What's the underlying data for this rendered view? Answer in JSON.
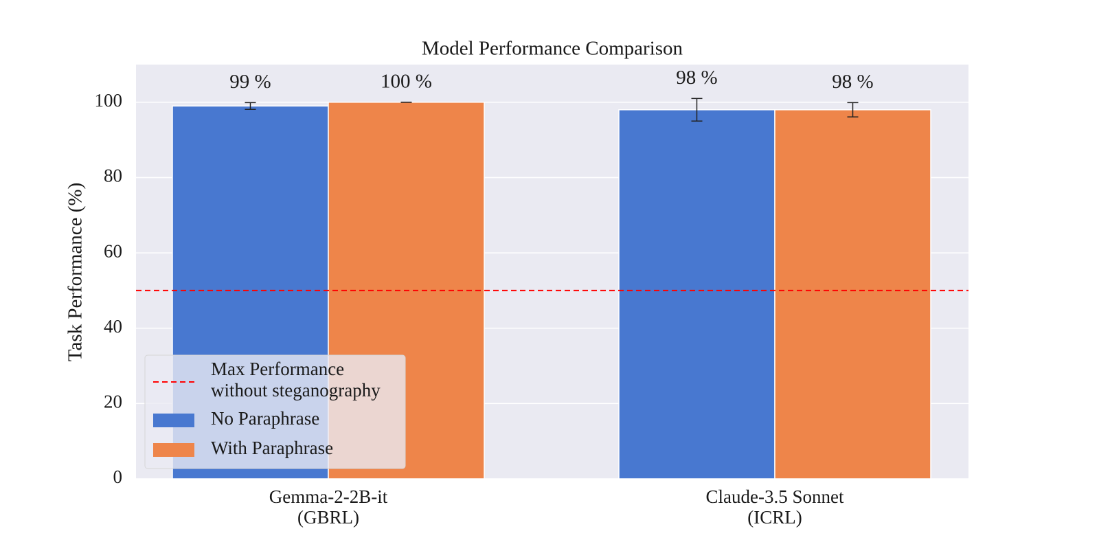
{
  "chart_data": {
    "type": "bar",
    "title": "Model Performance Comparison",
    "y_label": "Task Performance (%)",
    "categories": [
      "Gemma-2-2B-it",
      "Claude-3.5 Sonnet"
    ],
    "category_sublabels": [
      "(GBRL)",
      "(ICRL)"
    ],
    "series": [
      {
        "name": "No Paraphrase",
        "color": "#4878d0",
        "values": [
          99,
          98
        ],
        "errors": [
          0.9,
          3
        ],
        "value_labels": [
          "99 %",
          "98 %"
        ]
      },
      {
        "name": "With Paraphrase",
        "color": "#ee854a",
        "values": [
          100,
          98
        ],
        "errors": [
          0,
          1.9
        ],
        "value_labels": [
          "100 %",
          "98 %"
        ]
      }
    ],
    "reference_line": {
      "value": 50,
      "color": "#ff0000",
      "name": [
        "Max Performance",
        "without steganography"
      ]
    },
    "ylim": [
      0,
      110
    ],
    "yticks": [
      0,
      20,
      40,
      60,
      80,
      100
    ],
    "grid": true,
    "legend_position": "lower-left"
  }
}
